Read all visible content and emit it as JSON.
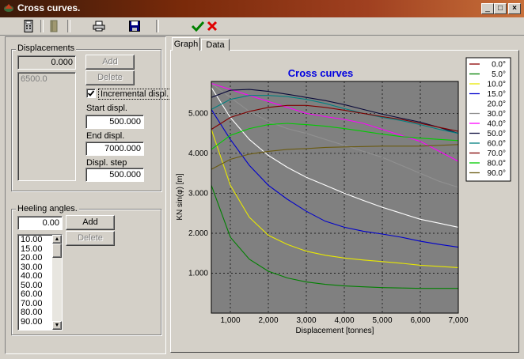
{
  "window": {
    "title": "Cross curves.",
    "minimize": "_",
    "maximize": "□",
    "close": "×"
  },
  "toolbar": {
    "icons": [
      "calculator-icon",
      "book-icon",
      "printer-icon",
      "save-icon",
      "check-icon",
      "cancel-icon"
    ]
  },
  "displacements": {
    "group_label": "Displacements",
    "value_field": "0.000",
    "add_label": "Add",
    "delete_label": "Delete",
    "list": [
      "6500.0"
    ],
    "incremental_label": "Incremental displ.",
    "incremental_checked": true,
    "start_label": "Start displ.",
    "start_value": "500.000",
    "end_label": "End displ.",
    "end_value": "7000.000",
    "step_label": "Displ. step",
    "step_value": "500.000"
  },
  "heeling": {
    "group_label": "Heeling angles.",
    "value_field": "0.00",
    "add_label": "Add",
    "delete_label": "Delete",
    "list": [
      "10.00",
      "15.00",
      "20.00",
      "30.00",
      "40.00",
      "50.00",
      "60.00",
      "70.00",
      "80.00",
      "90.00"
    ]
  },
  "tabs": [
    {
      "label": "Graph",
      "active": true
    },
    {
      "label": "Data",
      "active": false
    }
  ],
  "chart_data": {
    "type": "line",
    "title": "Cross curves",
    "xlabel": "Displacement [tonnes]",
    "ylabel": "KN sin(φ) [m]",
    "xlim": [
      500,
      7000
    ],
    "ylim": [
      0,
      5.8
    ],
    "x_ticks": [
      1000,
      2000,
      3000,
      4000,
      5000,
      6000,
      7000
    ],
    "x_tick_labels": [
      "1,000",
      "2,000",
      "3,000",
      "4,000",
      "5,000",
      "6,000",
      "7,000"
    ],
    "y_ticks": [
      1,
      2,
      3,
      4,
      5
    ],
    "y_tick_labels": [
      "1.000",
      "2.000",
      "3.000",
      "4.000",
      "5.000"
    ],
    "x": [
      500,
      1000,
      1500,
      2000,
      2500,
      3000,
      3500,
      4000,
      4500,
      5000,
      5500,
      6000,
      6500,
      7000
    ],
    "series": [
      {
        "name": "0.0°",
        "color": "#8b0000",
        "values": [
          0,
          0,
          0,
          0,
          0,
          0,
          0,
          0,
          0,
          0,
          0,
          0,
          0,
          0
        ]
      },
      {
        "name": "5.0°",
        "color": "#008000",
        "values": [
          3.2,
          1.9,
          1.35,
          1.05,
          0.88,
          0.78,
          0.72,
          0.68,
          0.66,
          0.64,
          0.63,
          0.62,
          0.62,
          0.62
        ]
      },
      {
        "name": "10.0°",
        "color": "#e8e800",
        "values": [
          4.6,
          3.2,
          2.4,
          1.95,
          1.72,
          1.55,
          1.45,
          1.38,
          1.33,
          1.29,
          1.25,
          1.2,
          1.17,
          1.14
        ]
      },
      {
        "name": "15.0°",
        "color": "#0000cc",
        "values": [
          5.1,
          4.35,
          3.7,
          3.2,
          2.85,
          2.55,
          2.3,
          2.15,
          2.05,
          1.98,
          1.9,
          1.8,
          1.72,
          1.65
        ]
      },
      {
        "name": "20.0°",
        "color": "#ffffff",
        "values": [
          5.65,
          4.9,
          4.35,
          3.95,
          3.65,
          3.4,
          3.2,
          3.0,
          2.82,
          2.65,
          2.5,
          2.35,
          2.25,
          2.15
        ]
      },
      {
        "name": "30.0°",
        "color": "#909090",
        "values": [
          5.75,
          5.4,
          5.05,
          4.8,
          4.62,
          4.5,
          4.35,
          4.2,
          4.05,
          3.9,
          3.7,
          3.5,
          3.3,
          3.15
        ]
      },
      {
        "name": "40.0°",
        "color": "#ff00ff",
        "values": [
          5.75,
          5.6,
          5.45,
          5.3,
          5.15,
          5.0,
          4.92,
          4.85,
          4.75,
          4.6,
          4.45,
          4.3,
          4.05,
          3.8
        ]
      },
      {
        "name": "50.0°",
        "color": "#0a0a3a",
        "values": [
          5.4,
          5.58,
          5.6,
          5.55,
          5.48,
          5.4,
          5.32,
          5.22,
          5.1,
          4.98,
          4.88,
          4.78,
          4.65,
          4.5
        ]
      },
      {
        "name": "60.0°",
        "color": "#008080",
        "values": [
          5.1,
          5.35,
          5.45,
          5.45,
          5.42,
          5.35,
          5.25,
          5.12,
          5.0,
          4.9,
          4.82,
          4.72,
          4.6,
          4.5
        ]
      },
      {
        "name": "70.0°",
        "color": "#800000",
        "values": [
          4.6,
          4.9,
          5.05,
          5.15,
          5.2,
          5.2,
          5.15,
          5.08,
          5.0,
          4.92,
          4.85,
          4.75,
          4.65,
          4.55
        ]
      },
      {
        "name": "80.0°",
        "color": "#00cc00",
        "values": [
          4.1,
          4.45,
          4.62,
          4.72,
          4.75,
          4.72,
          4.68,
          4.62,
          4.55,
          4.48,
          4.42,
          4.38,
          4.35,
          4.32
        ]
      },
      {
        "name": "90.0°",
        "color": "#6a5a10",
        "values": [
          3.6,
          3.85,
          3.98,
          4.05,
          4.1,
          4.12,
          4.15,
          4.16,
          4.17,
          4.18,
          4.18,
          4.18,
          4.2,
          4.22
        ]
      }
    ]
  }
}
